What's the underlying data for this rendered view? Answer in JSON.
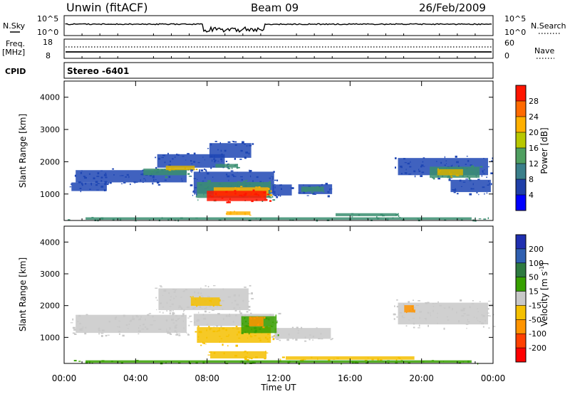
{
  "header": {
    "station": "Unwin (fitACF)",
    "beam": "Beam 09",
    "date": "26/Feb/2009"
  },
  "nsky_panel": {
    "left_label": "N.Sky",
    "right_label": "N.Search",
    "left_ticks": [
      "10^5",
      "10^0"
    ],
    "right_ticks": [
      "10^5",
      "10^0"
    ]
  },
  "freq_panel": {
    "left_label_1": "Freq.",
    "left_label_2": "[MHz]",
    "right_label": "Nave",
    "left_ticks": [
      "18",
      "8"
    ],
    "right_ticks": [
      "60",
      "0"
    ]
  },
  "cpid_panel": {
    "label": "CPID",
    "text": "Stereo -6401"
  },
  "chart_data": [
    {
      "type": "heatmap",
      "name": "power",
      "ylabel": "Slant Range [km]",
      "ylim": [
        180,
        4500
      ],
      "yticks": [
        1000,
        2000,
        3000,
        4000
      ],
      "xlim_hours": [
        0,
        24
      ],
      "colorbar": {
        "label": "Power [dB]",
        "ticks": [
          4,
          8,
          12,
          16,
          20,
          24,
          28
        ],
        "colors": [
          "#0000ff",
          "#1f3fa8",
          "#3a7f8a",
          "#4f9f60",
          "#b8c800",
          "#ffb000",
          "#ff6a00",
          "#ff1500"
        ]
      },
      "regions": [
        {
          "t0": 0.3,
          "t1": 7.2,
          "r0": 1300,
          "r1": 1800,
          "c": "#1e46b4"
        },
        {
          "t0": 5.0,
          "t1": 9.2,
          "r0": 1750,
          "r1": 2300,
          "c": "#1e46b4"
        },
        {
          "t0": 8.0,
          "t1": 10.6,
          "r0": 2050,
          "r1": 2650,
          "c": "#1e46b4"
        },
        {
          "t0": 4.3,
          "t1": 7.0,
          "r0": 1550,
          "r1": 1820,
          "c": "#3a8e70"
        },
        {
          "t0": 5.6,
          "t1": 7.4,
          "r0": 1720,
          "r1": 1900,
          "c": "#d8b000"
        },
        {
          "t0": 8.4,
          "t1": 9.8,
          "r0": 1800,
          "r1": 1950,
          "c": "#3a8e70"
        },
        {
          "t0": 0.3,
          "t1": 2.5,
          "r0": 1050,
          "r1": 1400,
          "c": "#1e46b4"
        },
        {
          "t0": 7.0,
          "t1": 12.0,
          "r0": 900,
          "r1": 1800,
          "c": "#1e46b4"
        },
        {
          "t0": 7.2,
          "t1": 11.8,
          "r0": 800,
          "r1": 1450,
          "c": "#3a8e70"
        },
        {
          "t0": 8.2,
          "t1": 11.6,
          "r0": 900,
          "r1": 1250,
          "c": "#ffb000"
        },
        {
          "t0": 7.8,
          "t1": 11.5,
          "r0": 730,
          "r1": 1150,
          "c": "#ff1500"
        },
        {
          "t0": 11.6,
          "t1": 12.8,
          "r0": 900,
          "r1": 1350,
          "c": "#1e46b4"
        },
        {
          "t0": 13.0,
          "t1": 15.1,
          "r0": 950,
          "r1": 1350,
          "c": "#1e46b4"
        },
        {
          "t0": 13.2,
          "t1": 14.6,
          "r0": 1050,
          "r1": 1250,
          "c": "#3a8e70"
        },
        {
          "t0": 9.0,
          "t1": 10.5,
          "r0": 330,
          "r1": 480,
          "c": "#ffb000"
        },
        {
          "t0": 15.0,
          "t1": 18.8,
          "r0": 300,
          "r1": 420,
          "c": "#3a8e70"
        },
        {
          "t0": 18.4,
          "t1": 24.0,
          "r0": 1500,
          "r1": 2200,
          "c": "#1e46b4"
        },
        {
          "t0": 20.3,
          "t1": 23.4,
          "r0": 1450,
          "r1": 1900,
          "c": "#3a8e70"
        },
        {
          "t0": 20.8,
          "t1": 22.4,
          "r0": 1550,
          "r1": 1800,
          "c": "#d8b000"
        },
        {
          "t0": 21.5,
          "t1": 24.0,
          "r0": 1000,
          "r1": 1500,
          "c": "#1e46b4"
        },
        {
          "t0": 0.0,
          "t1": 24.0,
          "r0": 190,
          "r1": 290,
          "c": "#3a8e70"
        }
      ]
    },
    {
      "type": "heatmap",
      "name": "velocity",
      "ylabel": "Slant Range [km]",
      "ylim": [
        180,
        4500
      ],
      "yticks": [
        1000,
        2000,
        3000,
        4000
      ],
      "xlim_hours": [
        0,
        24
      ],
      "colorbar": {
        "label": "Velocity [m s^-1]",
        "ticks": [
          200,
          100,
          50,
          15,
          -15,
          -50,
          -100,
          -200
        ],
        "colors": [
          "#1f2fb0",
          "#2f5fb0",
          "#2e7a40",
          "#37a000",
          "#c8c8c8",
          "#f5c000",
          "#ff9400",
          "#ff4000",
          "#ff0000"
        ]
      },
      "regions": [
        {
          "t0": 0.3,
          "t1": 7.2,
          "r0": 1050,
          "r1": 1800,
          "c": "#c8c8c8"
        },
        {
          "t0": 5.0,
          "t1": 10.6,
          "r0": 1750,
          "r1": 2650,
          "c": "#c8c8c8"
        },
        {
          "t0": 11.6,
          "t1": 15.1,
          "r0": 900,
          "r1": 1350,
          "c": "#c8c8c8"
        },
        {
          "t0": 7.0,
          "t1": 12.0,
          "r0": 1300,
          "r1": 1800,
          "c": "#c8c8c8"
        },
        {
          "t0": 7.2,
          "t1": 11.8,
          "r0": 750,
          "r1": 1400,
          "c": "#f5c000"
        },
        {
          "t0": 9.8,
          "t1": 12.0,
          "r0": 1050,
          "r1": 1750,
          "c": "#37a000"
        },
        {
          "t0": 10.3,
          "t1": 11.2,
          "r0": 1300,
          "r1": 1700,
          "c": "#ff9400"
        },
        {
          "t0": 7.0,
          "t1": 8.8,
          "r0": 1950,
          "r1": 2300,
          "c": "#f5c000"
        },
        {
          "t0": 8.0,
          "t1": 11.5,
          "r0": 300,
          "r1": 600,
          "c": "#f5c000"
        },
        {
          "t0": 12.0,
          "t1": 20.0,
          "r0": 280,
          "r1": 420,
          "c": "#f5c000"
        },
        {
          "t0": 18.4,
          "t1": 24.0,
          "r0": 1300,
          "r1": 2200,
          "c": "#c8c8c8"
        },
        {
          "t0": 19.0,
          "t1": 19.6,
          "r0": 1750,
          "r1": 2050,
          "c": "#ff9400"
        },
        {
          "t0": 0.0,
          "t1": 24.0,
          "r0": 190,
          "r1": 290,
          "c": "#37a000"
        }
      ]
    }
  ],
  "xaxis": {
    "ticks": [
      "00:00",
      "04:00",
      "08:00",
      "12:00",
      "16:00",
      "20:00",
      "00:00"
    ],
    "label": "Time UT"
  }
}
